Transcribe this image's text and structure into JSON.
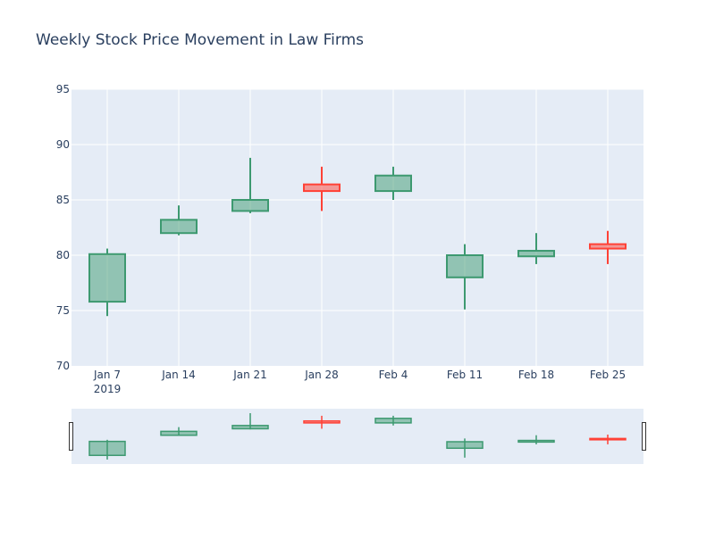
{
  "chart_data": {
    "type": "candlestick",
    "title": "Weekly Stock Price Movement in Law Firms",
    "xlabel": "",
    "ylabel": "",
    "ylim": [
      70,
      95
    ],
    "y_ticks": [
      70,
      75,
      80,
      85,
      90,
      95
    ],
    "x_tick_labels": [
      "Jan 7",
      "Jan 14",
      "Jan 21",
      "Jan 28",
      "Feb 4",
      "Feb 11",
      "Feb 18",
      "Feb 25"
    ],
    "x_year_label": "2019",
    "grid": true,
    "legend": "none",
    "rangeslider": true,
    "colors": {
      "increasing": "#3D9970",
      "increasing_fill": "rgba(61,153,112,0.5)",
      "decreasing": "#FF4136",
      "decreasing_fill": "rgba(255,65,54,0.5)",
      "plot_bg": "#E5ECF6",
      "grid": "#FFFFFF",
      "text": "#2A3F5F"
    },
    "series": [
      {
        "date": "2019-01-07",
        "open": 75.8,
        "high": 80.6,
        "low": 74.5,
        "close": 80.1
      },
      {
        "date": "2019-01-14",
        "open": 82.0,
        "high": 84.5,
        "low": 81.8,
        "close": 83.2
      },
      {
        "date": "2019-01-21",
        "open": 84.0,
        "high": 88.8,
        "low": 83.8,
        "close": 85.0
      },
      {
        "date": "2019-01-28",
        "open": 86.4,
        "high": 88.0,
        "low": 84.0,
        "close": 85.8
      },
      {
        "date": "2019-02-04",
        "open": 85.8,
        "high": 88.0,
        "low": 85.0,
        "close": 87.2
      },
      {
        "date": "2019-02-11",
        "open": 78.0,
        "high": 81.0,
        "low": 75.1,
        "close": 80.0
      },
      {
        "date": "2019-02-18",
        "open": 79.9,
        "high": 82.0,
        "low": 79.2,
        "close": 80.4
      },
      {
        "date": "2019-02-25",
        "open": 81.0,
        "high": 82.2,
        "low": 79.2,
        "close": 80.6
      }
    ]
  }
}
